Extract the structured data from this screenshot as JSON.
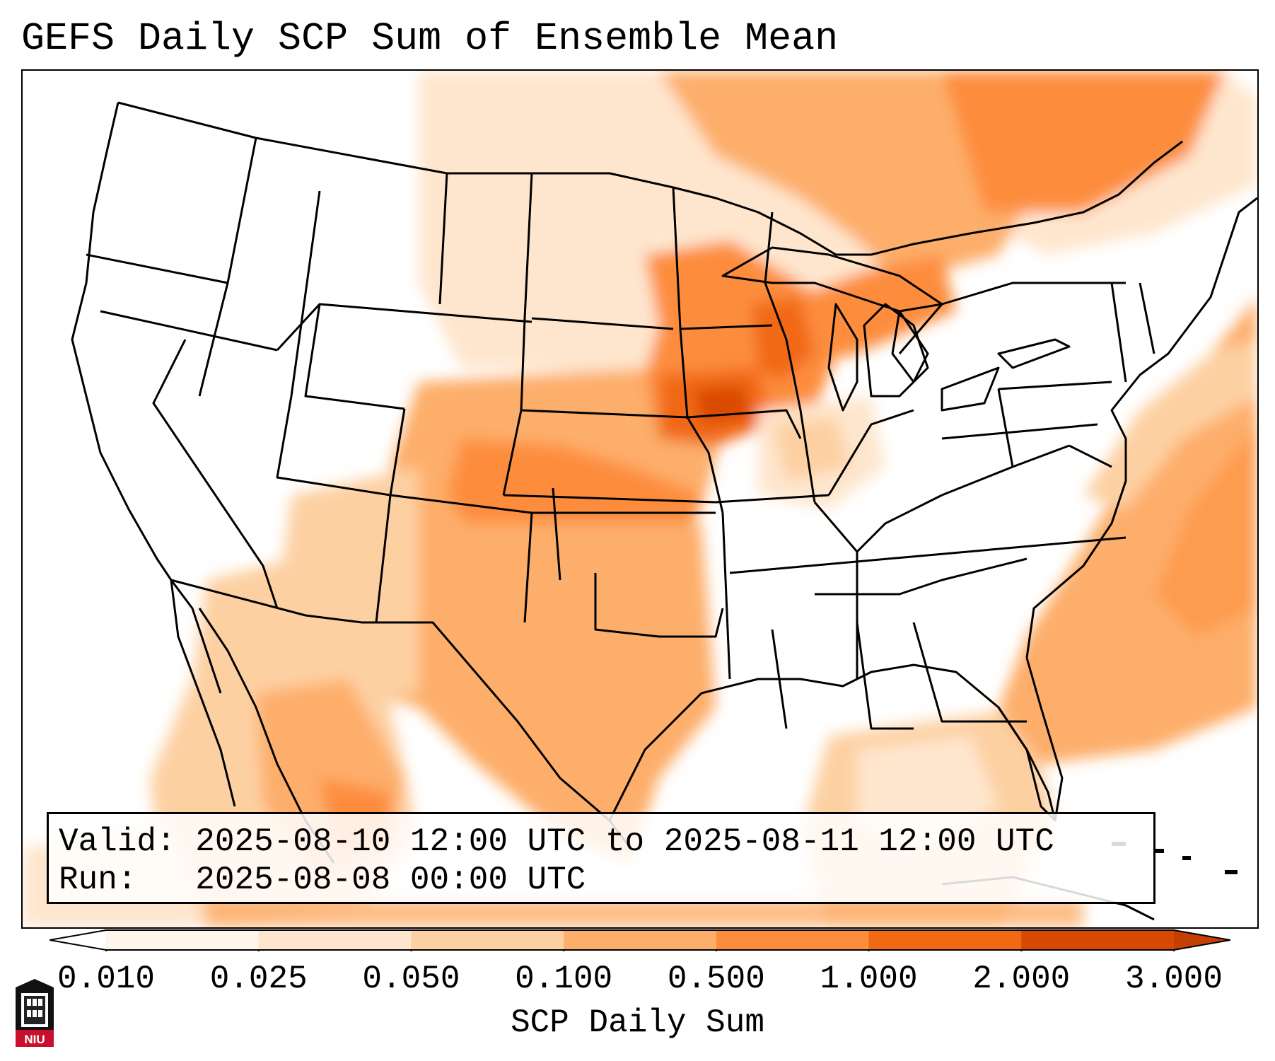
{
  "title": "GEFS Daily SCP Sum of Ensemble Mean",
  "info": {
    "valid_label": "Valid:",
    "valid_value": "2025-08-10 12:00 UTC to 2025-08-11 12:00 UTC",
    "run_label": "Run:",
    "run_value": "2025-08-08 00:00 UTC"
  },
  "colorbar": {
    "label": "SCP Daily Sum",
    "ticks": [
      "0.010",
      "0.025",
      "0.050",
      "0.100",
      "0.500",
      "1.000",
      "2.000",
      "3.000"
    ],
    "colors": [
      "#fff5eb",
      "#fee6ce",
      "#fdd0a2",
      "#fdae6b",
      "#fd8d3c",
      "#f16913",
      "#d94801"
    ],
    "extend": "both"
  },
  "logo": {
    "text": "NIU",
    "icon": "niu-logo-icon"
  },
  "map": {
    "projection": "Lambert Conformal CONUS",
    "field": "SCP daily sum",
    "regions": [
      {
        "name": "Iowa / Southern Minnesota",
        "level": 5
      },
      {
        "name": "Wisconsin / Upper Michigan",
        "level": 5
      },
      {
        "name": "Northern Ontario",
        "level": 5
      },
      {
        "name": "Kansas / SE Colorado",
        "level": 4
      },
      {
        "name": "Nebraska",
        "level": 3
      },
      {
        "name": "Texas / Oklahoma",
        "level": 3
      },
      {
        "name": "New Mexico",
        "level": 3
      },
      {
        "name": "Western Atlantic",
        "level": 3
      },
      {
        "name": "Mexico (Sierra Madre)",
        "level": 4
      },
      {
        "name": "Gulf of Mexico (east)",
        "level": 2
      },
      {
        "name": "Dakotas / Montana",
        "level": 1
      }
    ]
  }
}
